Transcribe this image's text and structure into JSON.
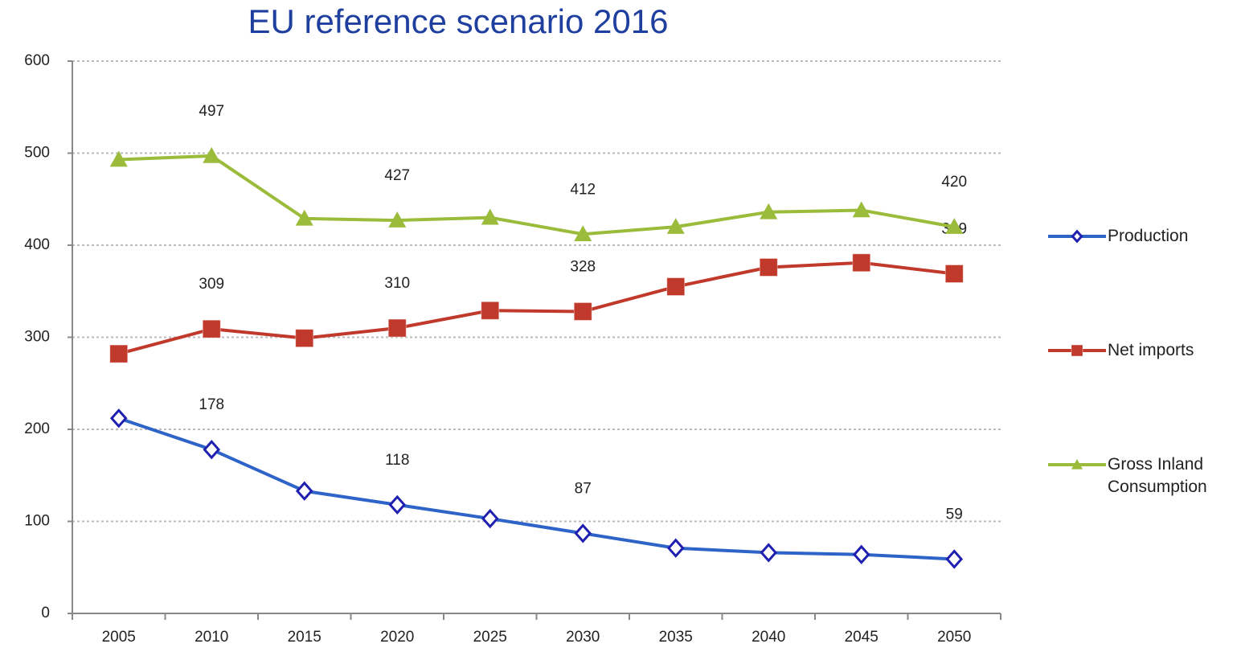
{
  "chart_data": {
    "type": "line",
    "title": "EU reference scenario 2016",
    "categories": [
      "2005",
      "2010",
      "2015",
      "2020",
      "2025",
      "2030",
      "2035",
      "2040",
      "2045",
      "2050"
    ],
    "series": [
      {
        "name": "Production",
        "color": "#2e64c8",
        "marker": "diamond",
        "values": [
          212,
          178,
          133,
          118,
          103,
          87,
          71,
          66,
          64,
          59
        ],
        "value_labels": [
          null,
          "178",
          null,
          "118",
          null,
          "87",
          null,
          null,
          null,
          "59"
        ]
      },
      {
        "name": "Net imports",
        "color": "#c0392b",
        "marker": "square",
        "values": [
          282,
          309,
          299,
          310,
          329,
          328,
          355,
          376,
          381,
          369
        ],
        "value_labels": [
          null,
          "309",
          null,
          "310",
          null,
          "328",
          null,
          null,
          null,
          "369"
        ]
      },
      {
        "name": "Gross Inland Consumption",
        "color": "#9bbb3b",
        "marker": "triangle",
        "values": [
          493,
          497,
          429,
          427,
          430,
          412,
          420,
          436,
          438,
          420
        ],
        "value_labels": [
          null,
          "497",
          null,
          "427",
          null,
          "412",
          null,
          null,
          null,
          "420"
        ]
      }
    ],
    "ylim": [
      0,
      600
    ],
    "yticks": [
      0,
      100,
      200,
      300,
      400,
      500,
      600
    ],
    "grid": true,
    "legend": "right"
  }
}
